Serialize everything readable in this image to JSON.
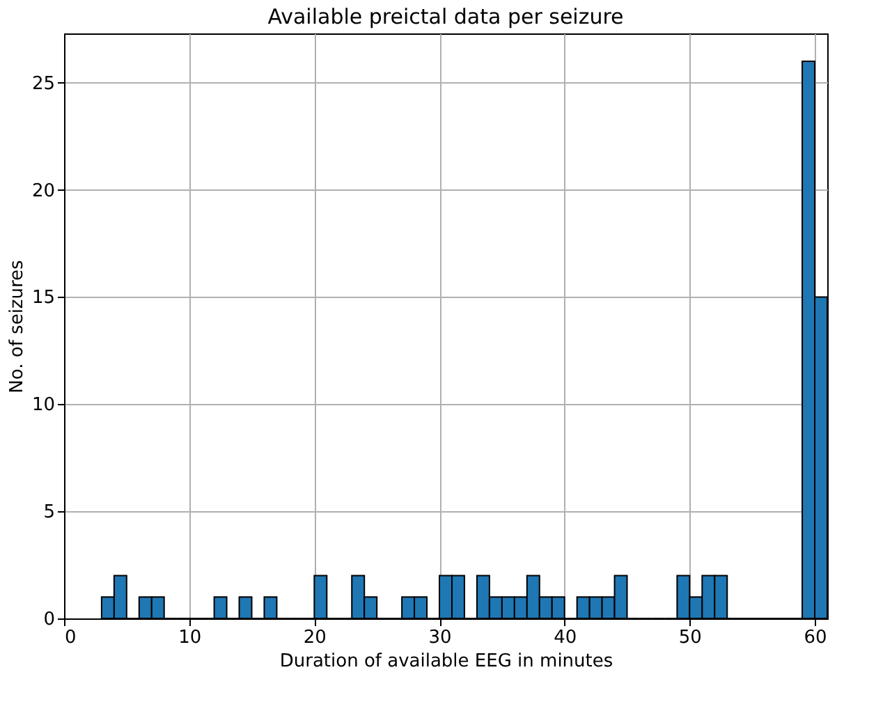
{
  "chart_data": {
    "type": "histogram",
    "title": "Available preictal data per seizure",
    "xlabel": "Duration of available EEG in minutes",
    "ylabel": "No. of seizures",
    "bins": [
      3,
      4,
      5,
      6,
      7,
      8,
      9,
      10,
      11,
      12,
      13,
      14,
      15,
      16,
      17,
      18,
      19,
      20,
      21,
      22,
      23,
      24,
      25,
      26,
      27,
      28,
      29,
      30,
      31,
      32,
      33,
      34,
      35,
      36,
      37,
      38,
      39,
      40,
      41,
      42,
      43,
      44,
      45,
      46,
      47,
      48,
      49,
      50,
      51,
      52,
      53,
      54,
      55,
      56,
      57,
      58,
      59,
      60,
      61
    ],
    "values": [
      1,
      2,
      0,
      1,
      1,
      0,
      0,
      0,
      0,
      1,
      0,
      1,
      0,
      1,
      0,
      0,
      0,
      2,
      0,
      0,
      2,
      1,
      0,
      0,
      1,
      1,
      0,
      2,
      2,
      0,
      2,
      1,
      1,
      1,
      2,
      1,
      1,
      0,
      1,
      1,
      1,
      2,
      0,
      0,
      0,
      0,
      2,
      1,
      2,
      2,
      0,
      0,
      0,
      0,
      0,
      0,
      26,
      15
    ],
    "color": "#1f77b4",
    "xlim": [
      0,
      61
    ],
    "xticks": [
      0,
      10,
      20,
      30,
      40,
      50,
      60
    ],
    "ylim": [
      0,
      27.3
    ],
    "yticks": [
      0,
      5,
      10,
      15,
      20,
      25
    ],
    "grid": true
  }
}
